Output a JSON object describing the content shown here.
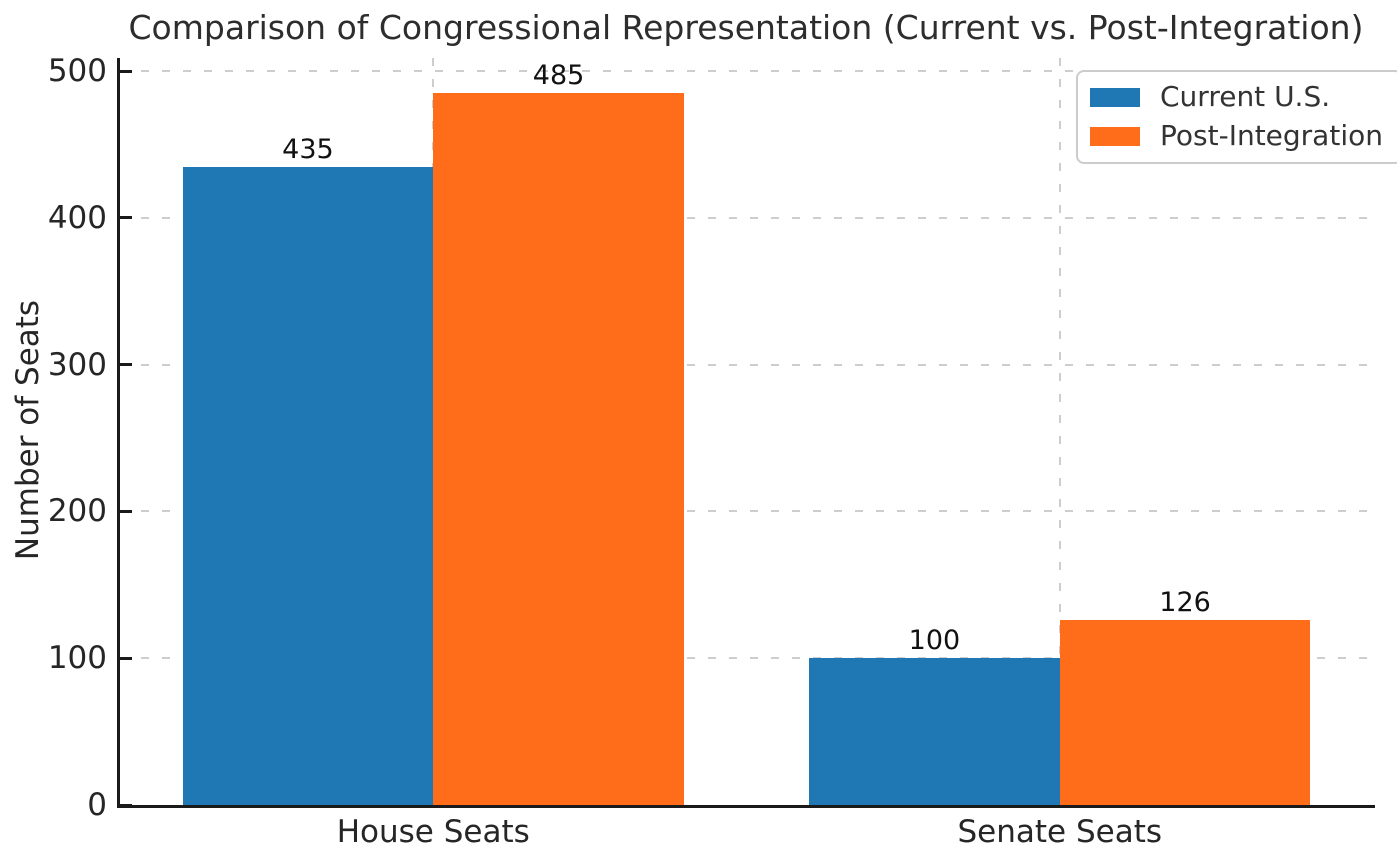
{
  "chart_data": {
    "type": "bar",
    "title": "Comparison of Congressional Representation (Current vs. Post-Integration)",
    "ylabel": "Number of Seats",
    "xlabel": "",
    "categories": [
      "House Seats",
      "Senate Seats"
    ],
    "series": [
      {
        "name": "Current U.S.",
        "color": "#1f77b4",
        "values": [
          435,
          100
        ]
      },
      {
        "name": "Post-Integration",
        "color": "#ff6d1a",
        "values": [
          485,
          126
        ]
      }
    ],
    "yticks": [
      0,
      100,
      200,
      300,
      400,
      500
    ],
    "ylim": [
      0,
      509
    ],
    "bar_width_fraction": 0.4,
    "value_labels_shown": true,
    "grid": {
      "axes": "both",
      "style": "dashed",
      "color": "#cdcdcd"
    },
    "legend": {
      "position": "upper right"
    }
  },
  "style_colors": {
    "axis_line": "#1a1a1a",
    "title_text": "#2d2d2d",
    "tick_text": "#262626",
    "value_label_text": "#111111",
    "legend_border": "#cccccc",
    "legend_text": "#333333"
  }
}
